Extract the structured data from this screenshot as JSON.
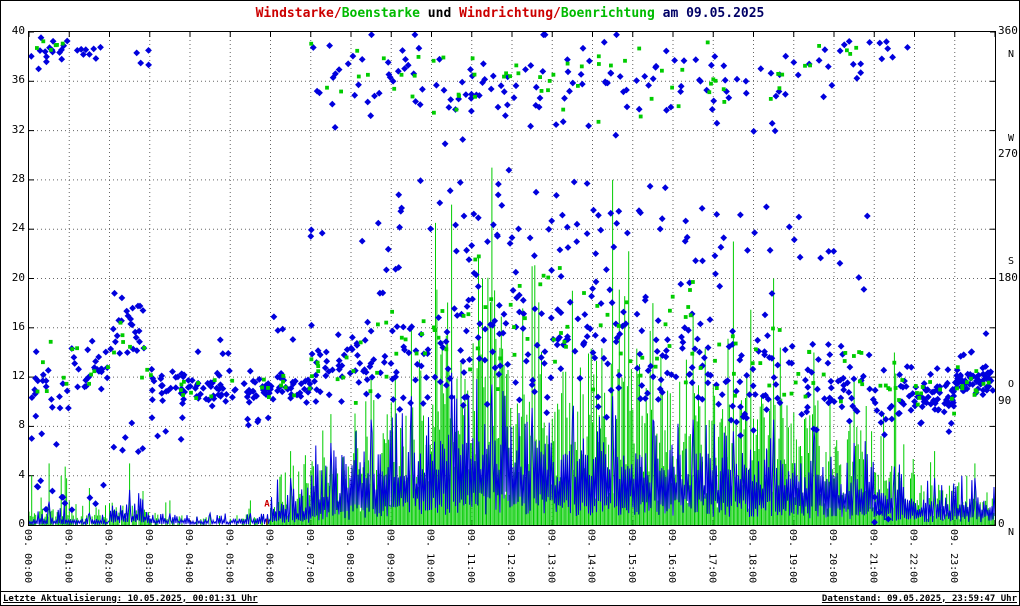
{
  "title": {
    "segments": [
      {
        "text": "Windstarke/",
        "color": "#cc0000"
      },
      {
        "text": "Boenstarke",
        "color": "#00bb00"
      },
      {
        "text": " und ",
        "color": "#000000"
      },
      {
        "text": "Windrichtung/",
        "color": "#cc0000"
      },
      {
        "text": "Boenrichtung",
        "color": "#00bb00"
      },
      {
        "text": " am 09.05.2025",
        "color": "#000066"
      }
    ]
  },
  "left_axis": {
    "ticks": [
      40,
      36,
      32,
      28,
      24,
      20,
      16,
      12,
      8,
      4,
      0
    ],
    "range": [
      0,
      40
    ]
  },
  "right_axis": {
    "ticks": [
      "360",
      "270",
      "180",
      "90",
      "0"
    ],
    "tick_degs": [
      360,
      270,
      180,
      90,
      0
    ],
    "letters": [
      "N",
      "W",
      "S",
      "O",
      "N"
    ],
    "letter_degs": [
      343,
      282,
      192,
      102,
      -6
    ],
    "range": [
      0,
      360
    ]
  },
  "x_axis": {
    "labels": [
      "09. 00:00",
      "09. 01:00",
      "09. 02:00",
      "09. 03:00",
      "09. 04:00",
      "09. 05:00",
      "09. 06:00",
      "09. 07:00",
      "09. 08:00",
      "09. 09:00",
      "09. 10:00",
      "09. 11:00",
      "09. 12:00",
      "09. 13:00",
      "09. 14:00",
      "09. 15:00",
      "09. 16:00",
      "09. 17:00",
      "09. 18:00",
      "09. 19:00",
      "09. 20:00",
      "09. 21:00",
      "09. 22:00",
      "09. 23:00"
    ]
  },
  "annotation": {
    "text": "A",
    "hour": 5.91,
    "value": 1.5,
    "color": "#cc0000"
  },
  "footer": {
    "left": "Letzte Aktualisierung: 10.05.2025, 00:01:31 Uhr",
    "right": "Datenstand: 09.05.2025, 23:59:47 Uhr"
  },
  "chart_data": {
    "type": "scatter",
    "title": "Windstarke/Boenstarke und Windrichtung/Boenrichtung am 09.05.2025",
    "x_range_hours": [
      0,
      24
    ],
    "left_ylim": [
      0,
      40
    ],
    "right_ylim": [
      0,
      360
    ],
    "grid": true,
    "colors": {
      "wind": "#0000dd",
      "gust": "#00cc00",
      "wind_dir": "#0000dd",
      "gust_dir": "#00cc00"
    },
    "series_names": [
      "Windstarke (line, left axis)",
      "Boenstarke (spikes, left axis)",
      "Windrichtung (diamonds, right axis)",
      "Boenrichtung (squares, right axis)"
    ],
    "hours": [
      0,
      1,
      2,
      3,
      4,
      5,
      6,
      7,
      8,
      9,
      10,
      11,
      12,
      13,
      14,
      15,
      16,
      17,
      18,
      19,
      20,
      21,
      22,
      23
    ],
    "wind_mean": [
      0.3,
      0.3,
      0.8,
      0.4,
      0.3,
      0.4,
      1.2,
      2.5,
      3.5,
      4.5,
      5.5,
      5.5,
      5.0,
      4.5,
      5.0,
      4.5,
      4.5,
      4.0,
      4.0,
      3.5,
      3.0,
      2.0,
      1.5,
      1.5
    ],
    "wind_max": [
      2,
      1,
      3,
      1,
      1,
      1,
      4,
      7,
      9,
      11,
      13,
      12,
      10,
      9,
      11,
      9,
      9,
      8,
      9,
      8,
      7,
      5,
      4,
      4
    ],
    "gust_typ": [
      1,
      0.8,
      1.5,
      0.5,
      0.4,
      0.5,
      2,
      5,
      7,
      9,
      13,
      14,
      12,
      11,
      12,
      11,
      10,
      10,
      10,
      8,
      7,
      5,
      3,
      2
    ],
    "gust_max": [
      5,
      3,
      5,
      2,
      1,
      2,
      6,
      9,
      12,
      16,
      26,
      29,
      21,
      19,
      28,
      18,
      17,
      23,
      20,
      14,
      12,
      14,
      6,
      5
    ],
    "wind_dir_clusters": [
      [
        [
          100,
          30,
          22
        ],
        [
          345,
          12,
          16
        ],
        [
          20,
          15,
          8
        ]
      ],
      [
        [
          115,
          25,
          26
        ],
        [
          345,
          10,
          8
        ],
        [
          15,
          10,
          4
        ]
      ],
      [
        [
          140,
          28,
          26
        ],
        [
          60,
          20,
          6
        ],
        [
          340,
          10,
          4
        ]
      ],
      [
        [
          100,
          14,
          30
        ],
        [
          70,
          10,
          5
        ]
      ],
      [
        [
          100,
          12,
          30
        ],
        [
          130,
          8,
          4
        ]
      ],
      [
        [
          100,
          10,
          30
        ],
        [
          75,
          8,
          5
        ]
      ],
      [
        [
          100,
          12,
          28
        ],
        [
          140,
          15,
          4
        ]
      ],
      [
        [
          110,
          25,
          26
        ],
        [
          320,
          30,
          10
        ],
        [
          200,
          40,
          4
        ]
      ],
      [
        [
          120,
          35,
          26
        ],
        [
          330,
          25,
          12
        ],
        [
          210,
          45,
          6
        ]
      ],
      [
        [
          120,
          40,
          26
        ],
        [
          330,
          25,
          12
        ],
        [
          220,
          50,
          8
        ]
      ],
      [
        [
          130,
          50,
          24
        ],
        [
          320,
          35,
          14
        ],
        [
          220,
          50,
          10
        ]
      ],
      [
        [
          140,
          55,
          24
        ],
        [
          320,
          40,
          14
        ],
        [
          230,
          50,
          10
        ]
      ],
      [
        [
          130,
          50,
          24
        ],
        [
          330,
          30,
          12
        ],
        [
          220,
          50,
          10
        ]
      ],
      [
        [
          130,
          50,
          24
        ],
        [
          320,
          35,
          12
        ],
        [
          220,
          50,
          10
        ]
      ],
      [
        [
          130,
          50,
          24
        ],
        [
          320,
          35,
          12
        ],
        [
          220,
          50,
          10
        ]
      ],
      [
        [
          120,
          45,
          24
        ],
        [
          320,
          35,
          10
        ],
        [
          210,
          50,
          8
        ]
      ],
      [
        [
          120,
          45,
          24
        ],
        [
          330,
          30,
          10
        ],
        [
          210,
          50,
          8
        ]
      ],
      [
        [
          110,
          40,
          24
        ],
        [
          320,
          35,
          10
        ],
        [
          200,
          50,
          8
        ]
      ],
      [
        [
          110,
          40,
          22
        ],
        [
          320,
          35,
          10
        ],
        [
          200,
          50,
          6
        ]
      ],
      [
        [
          100,
          35,
          22
        ],
        [
          330,
          25,
          8
        ],
        [
          190,
          45,
          6
        ]
      ],
      [
        [
          100,
          30,
          24
        ],
        [
          340,
          20,
          8
        ],
        [
          180,
          40,
          4
        ]
      ],
      [
        [
          95,
          25,
          26
        ],
        [
          350,
          15,
          6
        ],
        [
          10,
          10,
          4
        ]
      ],
      [
        [
          95,
          14,
          50
        ],
        [
          70,
          10,
          4
        ]
      ],
      [
        [
          105,
          12,
          55
        ],
        [
          130,
          10,
          5
        ]
      ]
    ],
    "gust_dir_clusters": [
      [
        [
          110,
          25,
          6
        ],
        [
          352,
          6,
          6
        ]
      ],
      [
        [
          120,
          20,
          6
        ]
      ],
      [
        [
          130,
          25,
          8
        ]
      ],
      [
        [
          100,
          12,
          5
        ]
      ],
      [
        [
          100,
          10,
          5
        ]
      ],
      [
        [
          100,
          10,
          5
        ]
      ],
      [
        [
          105,
          12,
          6
        ]
      ],
      [
        [
          115,
          25,
          8
        ],
        [
          330,
          20,
          3
        ]
      ],
      [
        [
          125,
          35,
          8
        ],
        [
          330,
          20,
          4
        ]
      ],
      [
        [
          130,
          40,
          8
        ],
        [
          330,
          25,
          5
        ]
      ],
      [
        [
          140,
          50,
          8
        ],
        [
          325,
          30,
          6
        ]
      ],
      [
        [
          150,
          55,
          8
        ],
        [
          325,
          30,
          6
        ]
      ],
      [
        [
          140,
          50,
          8
        ],
        [
          330,
          25,
          6
        ]
      ],
      [
        [
          140,
          50,
          8
        ],
        [
          325,
          30,
          5
        ]
      ],
      [
        [
          140,
          50,
          8
        ],
        [
          325,
          30,
          5
        ]
      ],
      [
        [
          130,
          45,
          8
        ],
        [
          325,
          30,
          5
        ]
      ],
      [
        [
          130,
          45,
          8
        ],
        [
          330,
          25,
          5
        ]
      ],
      [
        [
          120,
          40,
          8
        ],
        [
          325,
          30,
          4
        ]
      ],
      [
        [
          120,
          40,
          7
        ],
        [
          325,
          30,
          4
        ]
      ],
      [
        [
          110,
          35,
          7
        ],
        [
          335,
          20,
          3
        ]
      ],
      [
        [
          105,
          30,
          8
        ],
        [
          345,
          12,
          3
        ]
      ],
      [
        [
          100,
          22,
          8
        ]
      ],
      [
        [
          95,
          12,
          10
        ]
      ],
      [
        [
          105,
          10,
          12
        ]
      ]
    ]
  }
}
